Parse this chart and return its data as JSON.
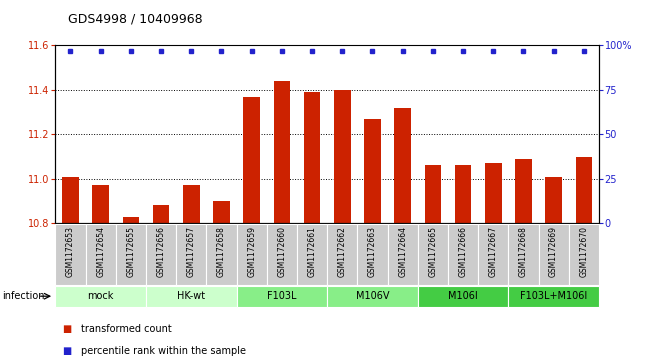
{
  "title": "GDS4998 / 10409968",
  "samples": [
    "GSM1172653",
    "GSM1172654",
    "GSM1172655",
    "GSM1172656",
    "GSM1172657",
    "GSM1172658",
    "GSM1172659",
    "GSM1172660",
    "GSM1172661",
    "GSM1172662",
    "GSM1172663",
    "GSM1172664",
    "GSM1172665",
    "GSM1172666",
    "GSM1172667",
    "GSM1172668",
    "GSM1172669",
    "GSM1172670"
  ],
  "bar_values": [
    11.01,
    10.97,
    10.83,
    10.88,
    10.97,
    10.9,
    11.37,
    11.44,
    11.39,
    11.4,
    11.27,
    11.32,
    11.06,
    11.06,
    11.07,
    11.09,
    11.01,
    11.1
  ],
  "percentile_values": [
    100,
    100,
    100,
    100,
    100,
    100,
    100,
    100,
    100,
    100,
    100,
    100,
    100,
    100,
    100,
    100,
    100,
    100
  ],
  "bar_color": "#cc2200",
  "dot_color": "#2222cc",
  "ylim_left": [
    10.8,
    11.6
  ],
  "ylim_right": [
    0,
    100
  ],
  "yticks_left": [
    10.8,
    11.0,
    11.2,
    11.4,
    11.6
  ],
  "yticks_right": [
    0,
    25,
    50,
    75,
    100
  ],
  "groups": [
    {
      "label": "mock",
      "start": 0,
      "end": 2,
      "color": "#ccffcc"
    },
    {
      "label": "HK-wt",
      "start": 3,
      "end": 5,
      "color": "#ccffcc"
    },
    {
      "label": "F103L",
      "start": 6,
      "end": 8,
      "color": "#88ee88"
    },
    {
      "label": "M106V",
      "start": 9,
      "end": 11,
      "color": "#88ee88"
    },
    {
      "label": "M106I",
      "start": 12,
      "end": 14,
      "color": "#44cc44"
    },
    {
      "label": "F103L+M106I",
      "start": 15,
      "end": 17,
      "color": "#44cc44"
    }
  ],
  "group_label": "infection",
  "legend_bar_label": "transformed count",
  "legend_dot_label": "percentile rank within the sample",
  "bar_width": 0.55,
  "sample_box_color": "#cccccc",
  "tick_label_color_left": "#cc2200",
  "tick_label_color_right": "#2222cc",
  "title_fontsize": 9,
  "axis_fontsize": 7,
  "sample_fontsize": 5.5,
  "group_fontsize": 7,
  "legend_fontsize": 7
}
